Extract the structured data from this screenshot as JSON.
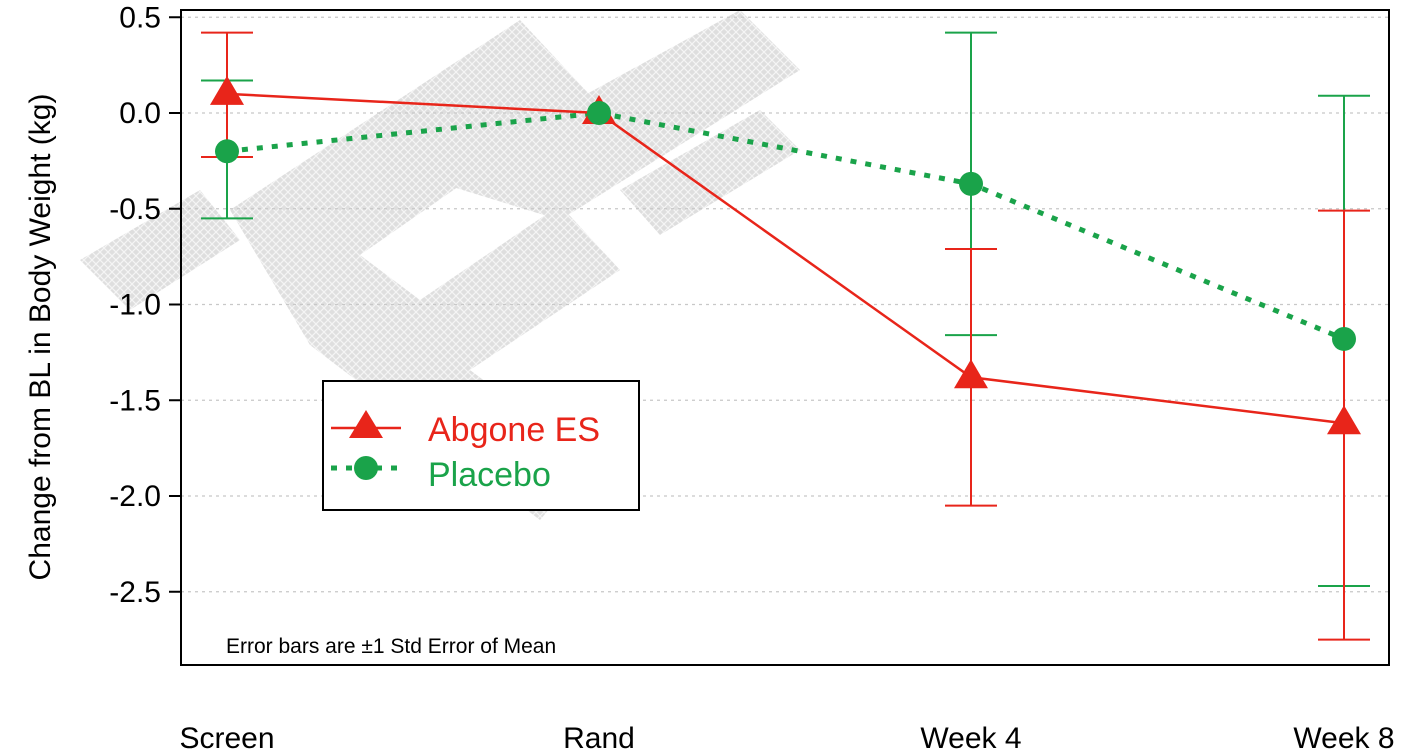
{
  "chart_data": {
    "type": "line",
    "categories": [
      "Screen",
      "Rand",
      "Week 4",
      "Week 8"
    ],
    "ylabel": "Change from BL in Body Weight (kg)",
    "xlabel": "",
    "ylim": [
      -2.8,
      0.53
    ],
    "yticks": [
      "0.5",
      "0.0",
      "-0.5",
      "-1.0",
      "-1.5",
      "-2.0",
      "-2.5"
    ],
    "grid": "horizontal dotted",
    "legend_position": "left-middle",
    "note": "Error bars are ±1 Std Error of Mean",
    "series": [
      {
        "name": "Abgone ES",
        "color": "#e8251a",
        "line": "solid",
        "marker": "triangle",
        "values": [
          0.1,
          0.0,
          -1.38,
          -1.62
        ],
        "err_low": [
          -0.23,
          0.0,
          -2.05,
          -2.75
        ],
        "err_high": [
          0.42,
          0.0,
          -0.71,
          -0.51
        ]
      },
      {
        "name": "Placebo",
        "color": "#1aa34a",
        "line": "dotted",
        "marker": "circle",
        "values": [
          -0.2,
          0.0,
          -0.37,
          -1.18
        ],
        "err_low": [
          -0.55,
          0.0,
          -1.16,
          -2.47
        ],
        "err_high": [
          0.17,
          0.0,
          0.42,
          0.09
        ]
      }
    ]
  }
}
